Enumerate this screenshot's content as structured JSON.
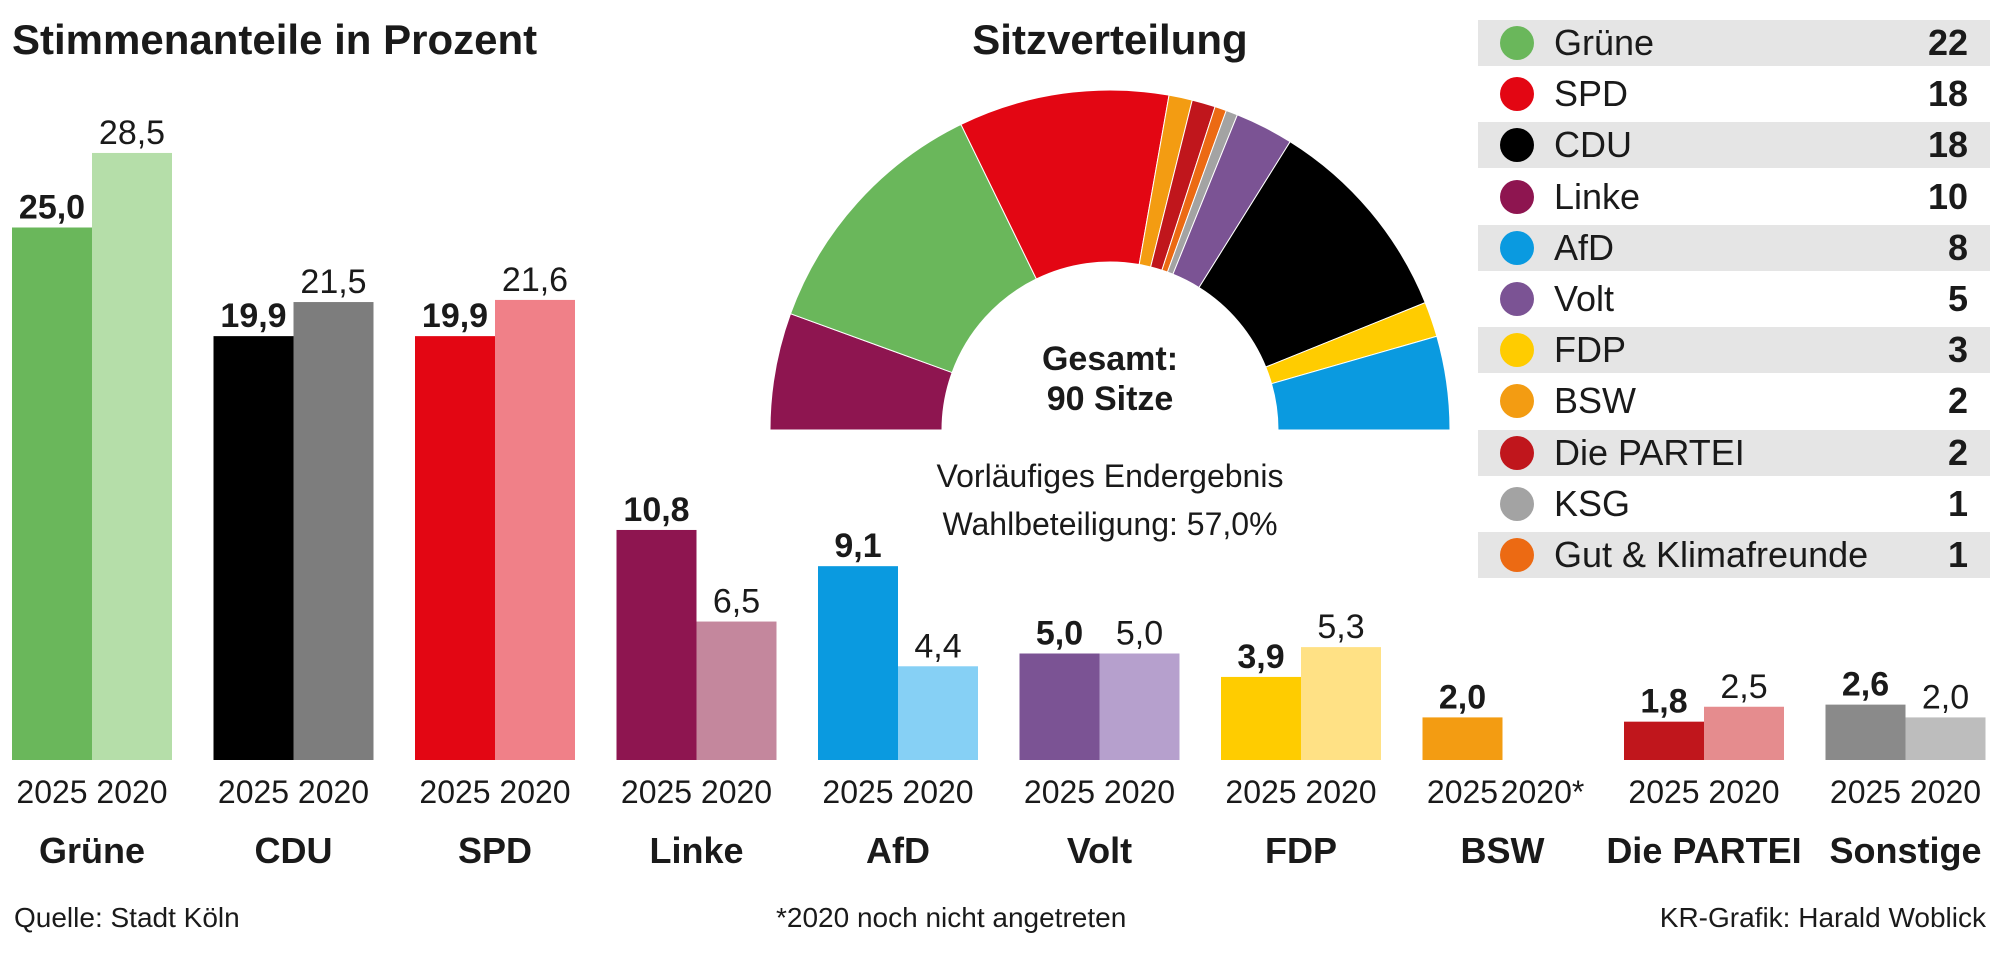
{
  "chart_data": [
    {
      "type": "bar",
      "title": "Stimmenanteile in Prozent",
      "categories": [
        "Grüne",
        "CDU",
        "SPD",
        "Linke",
        "AfD",
        "Volt",
        "FDP",
        "BSW",
        "Die PARTEI",
        "Sonstige"
      ],
      "series": [
        {
          "name": "2025",
          "tick_labels": [
            "2025",
            "2025",
            "2025",
            "2025",
            "2025",
            "2025",
            "2025",
            "2025",
            "2025",
            "2025"
          ],
          "values": [
            25.0,
            19.9,
            19.9,
            10.8,
            9.1,
            5.0,
            3.9,
            2.0,
            1.8,
            2.6
          ],
          "value_labels": [
            "25,0",
            "19,9",
            "19,9",
            "10,8",
            "9,1",
            "5,0",
            "3,9",
            "2,0",
            "1,8",
            "2,6"
          ],
          "colors": [
            "#6ab75b",
            "#000000",
            "#e30613",
            "#8e1550",
            "#0a9ae0",
            "#7b5394",
            "#ffcc00",
            "#f39c12",
            "#c0161c",
            "#8a8a8a"
          ]
        },
        {
          "name": "2020",
          "tick_labels": [
            "2020",
            "2020",
            "2020",
            "2020",
            "2020",
            "2020",
            "2020",
            "2020*",
            "2020",
            "2020"
          ],
          "values": [
            28.5,
            21.5,
            21.6,
            6.5,
            4.4,
            5.0,
            5.3,
            0,
            2.5,
            2.0
          ],
          "value_labels": [
            "28,5",
            "21,5",
            "21,6",
            "6,5",
            "4,4",
            "5,0",
            "5,3",
            "",
            "2,5",
            "2,0"
          ],
          "colors": [
            "#b5dea9",
            "#7d7d7d",
            "#f08088",
            "#c4879d",
            "#86d0f5",
            "#b6a0cd",
            "#ffe185",
            "#fff4d6",
            "#e58c8e",
            "#bdbdbd"
          ]
        }
      ],
      "ylim": [
        0,
        30
      ],
      "xlabel": "",
      "ylabel": ""
    },
    {
      "type": "pie",
      "subtype": "parliament-semicircle",
      "title": "Sitzverteilung",
      "center_label_1": "Gesamt:",
      "center_label_2": "90 Sitze",
      "subtitle_1": "Vorläufiges Endergebnis",
      "subtitle_2": "Wahlbeteiligung: 57,0%",
      "segments": [
        {
          "party": "Linke",
          "seats": 10,
          "color": "#8e1550"
        },
        {
          "party": "Grüne",
          "seats": 22,
          "color": "#6ab75b"
        },
        {
          "party": "SPD",
          "seats": 18,
          "color": "#e30613"
        },
        {
          "party": "BSW",
          "seats": 2,
          "color": "#f39c12"
        },
        {
          "party": "Die PARTEI",
          "seats": 2,
          "color": "#c0161c"
        },
        {
          "party": "Gut & Klimafreunde",
          "seats": 1,
          "color": "#ec6a13"
        },
        {
          "party": "KSG",
          "seats": 1,
          "color": "#a3a3a3"
        },
        {
          "party": "Volt",
          "seats": 5,
          "color": "#7b5394"
        },
        {
          "party": "CDU",
          "seats": 18,
          "color": "#000000"
        },
        {
          "party": "FDP",
          "seats": 3,
          "color": "#ffcc00"
        },
        {
          "party": "AfD",
          "seats": 8,
          "color": "#0a9ae0"
        }
      ]
    }
  ],
  "legend": [
    {
      "name": "Grüne",
      "seats": "22",
      "color": "#6ab75b"
    },
    {
      "name": "SPD",
      "seats": "18",
      "color": "#e30613"
    },
    {
      "name": "CDU",
      "seats": "18",
      "color": "#000000"
    },
    {
      "name": "Linke",
      "seats": "10",
      "color": "#8e1550"
    },
    {
      "name": "AfD",
      "seats": "8",
      "color": "#0a9ae0"
    },
    {
      "name": "Volt",
      "seats": "5",
      "color": "#7b5394"
    },
    {
      "name": "FDP",
      "seats": "3",
      "color": "#ffcc00"
    },
    {
      "name": "BSW",
      "seats": "2",
      "color": "#f39c12"
    },
    {
      "name": "Die PARTEI",
      "seats": "2",
      "color": "#c0161c"
    },
    {
      "name": "KSG",
      "seats": "1",
      "color": "#a3a3a3"
    },
    {
      "name": "Gut & Klimafreunde",
      "seats": "1",
      "color": "#ec6a13"
    }
  ],
  "footer": {
    "source": "Quelle: Stadt Köln",
    "note": "*2020 noch nicht angetreten",
    "credit": "KR-Grafik: Harald Woblick"
  }
}
